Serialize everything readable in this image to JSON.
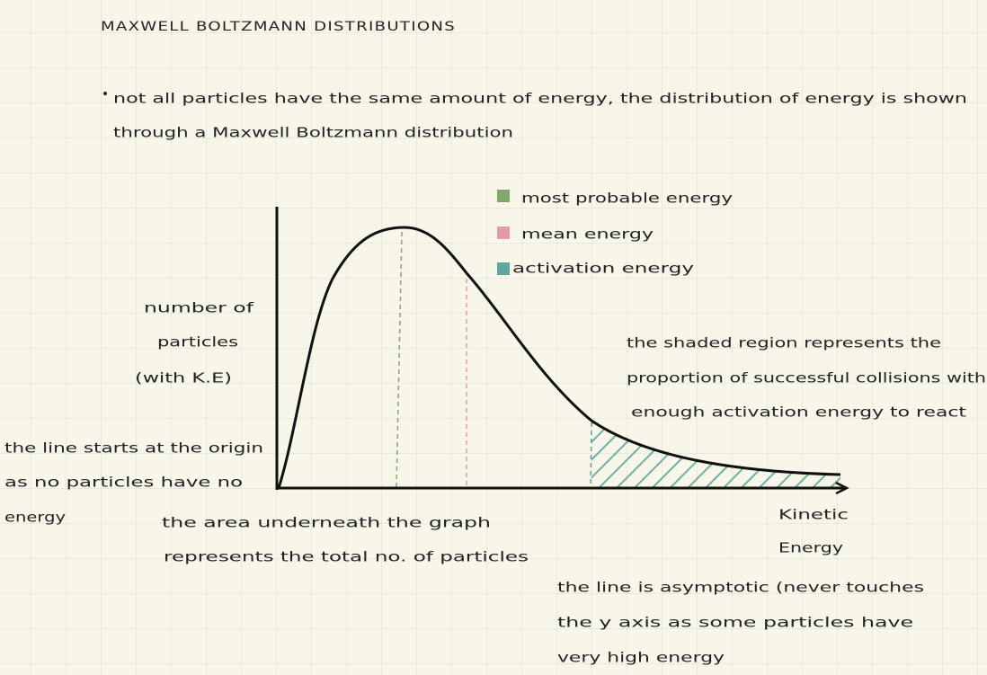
{
  "header": {
    "title": "MAXWELL BOLTZMANN DISTRIBUTIONS"
  },
  "bullet": {
    "lines": [
      "not all particles have the same amount of energy, the distribution of energy is shown",
      "through a Maxwell Boltzmann distribution"
    ]
  },
  "legend": {
    "items": [
      "most probable energy",
      "mean energy",
      "activation energy"
    ]
  },
  "y_axis_label": {
    "lines": [
      "number of",
      "particles",
      "(with K.E)"
    ]
  },
  "x_axis_label": {
    "lines": [
      "Kinetic",
      "Energy"
    ]
  },
  "annotations": {
    "shaded": [
      "the shaded region represents the",
      "proportion of successful collisions with",
      "enough activation energy to react"
    ],
    "origin": [
      "the line starts at the origin",
      "as no particles have no",
      "energy"
    ],
    "area": [
      "the area underneath the graph",
      "represents the total no. of particles"
    ],
    "asymptote": [
      "the line is asymptotic (never touches",
      "the y axis as some particles have",
      "very high energy"
    ]
  }
}
